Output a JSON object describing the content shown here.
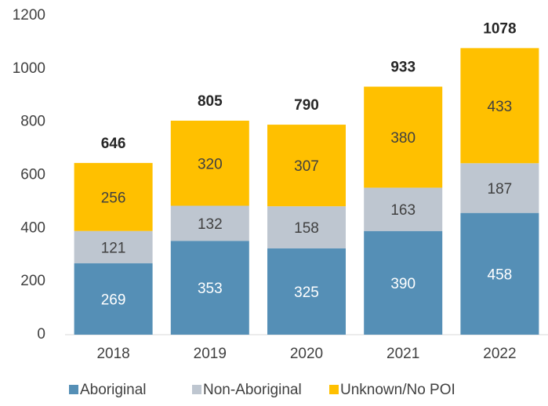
{
  "chart_data": {
    "type": "stacked_bar",
    "categories": [
      "2018",
      "2019",
      "2020",
      "2021",
      "2022"
    ],
    "series": [
      {
        "name": "Aboriginal",
        "color": "#558fb6",
        "values": [
          269,
          353,
          325,
          390,
          458
        ]
      },
      {
        "name": "Non-Aboriginal",
        "color": "#bec6d0",
        "values": [
          121,
          132,
          158,
          163,
          187
        ]
      },
      {
        "name": "Unknown/No POI",
        "color": "#ffc000",
        "values": [
          256,
          320,
          307,
          380,
          433
        ]
      }
    ],
    "totals": [
      646,
      805,
      790,
      933,
      1078
    ],
    "ylim": [
      0,
      1200
    ],
    "yticks": [
      0,
      200,
      400,
      600,
      800,
      1000,
      1200
    ],
    "grid": false,
    "legend": "bottom"
  }
}
